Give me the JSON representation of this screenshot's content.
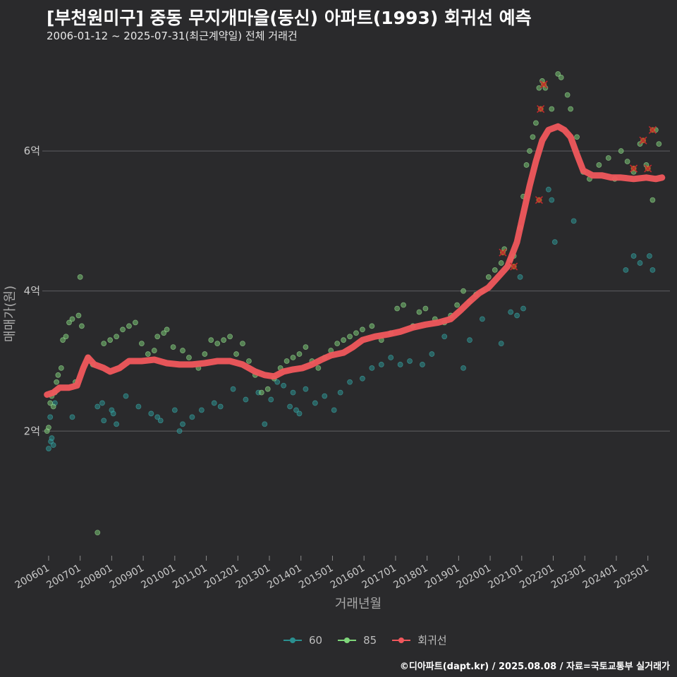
{
  "header": {
    "title": "[부천원미구] 중동 무지개마을(동신) 아파트(1993) 회귀선 예측",
    "subtitle": "2006-01-12 ~ 2025-07-31(최근계약일) 전체 거래건"
  },
  "caption": "©디아파트(dapt.kr) / 2025.08.08 / 자료=국토교통부 실거래가",
  "colors": {
    "background": "#2a2a2c",
    "grid": "#5e5e60",
    "s60": "#2a8f8f",
    "s85": "#7fd67a",
    "regression": "#f0575c"
  },
  "chart_data": {
    "type": "scatter",
    "title": "[부천원미구] 중동 무지개마을(동신) 아파트(1993) 회귀선 예측",
    "xlabel": "거래년월",
    "ylabel": "매매가(원)",
    "x_ticks": [
      "200601",
      "200701",
      "200801",
      "200901",
      "201001",
      "201101",
      "201201",
      "201301",
      "201401",
      "201501",
      "201601",
      "201701",
      "201801",
      "201901",
      "202001",
      "202101",
      "202201",
      "202301",
      "202401",
      "202501"
    ],
    "y_ticks": [
      {
        "value": 2,
        "label": "2억"
      },
      {
        "value": 4,
        "label": "4억"
      },
      {
        "value": 6,
        "label": "6억"
      }
    ],
    "xlim": [
      2005.85,
      2025.75
    ],
    "ylim": [
      0.2,
      7.3
    ],
    "y_unit": "억원",
    "legend": [
      {
        "name": "60",
        "color": "#2a8f8f"
      },
      {
        "name": "85",
        "color": "#7fd67a"
      },
      {
        "name": "회귀선",
        "color": "#f0575c"
      }
    ],
    "series": [
      {
        "name": "60",
        "points": [
          [
            2006.05,
            1.75
          ],
          [
            2006.12,
            1.85
          ],
          [
            2006.2,
            1.8
          ],
          [
            2006.15,
            1.9
          ],
          [
            2006.1,
            2.2
          ],
          [
            2006.25,
            2.4
          ],
          [
            2006.8,
            2.2
          ],
          [
            2007.6,
            2.35
          ],
          [
            2007.75,
            2.4
          ],
          [
            2007.8,
            2.15
          ],
          [
            2008.05,
            2.3
          ],
          [
            2008.1,
            2.25
          ],
          [
            2008.2,
            2.1
          ],
          [
            2008.5,
            2.5
          ],
          [
            2008.9,
            2.35
          ],
          [
            2009.3,
            2.25
          ],
          [
            2009.5,
            2.2
          ],
          [
            2009.6,
            2.15
          ],
          [
            2010.05,
            2.3
          ],
          [
            2010.2,
            2.0
          ],
          [
            2010.3,
            2.1
          ],
          [
            2010.6,
            2.2
          ],
          [
            2010.9,
            2.3
          ],
          [
            2011.3,
            2.4
          ],
          [
            2011.5,
            2.35
          ],
          [
            2011.9,
            2.6
          ],
          [
            2012.3,
            2.45
          ],
          [
            2012.7,
            2.55
          ],
          [
            2012.9,
            2.1
          ],
          [
            2013.1,
            2.45
          ],
          [
            2013.3,
            2.7
          ],
          [
            2013.5,
            2.65
          ],
          [
            2013.7,
            2.35
          ],
          [
            2013.8,
            2.55
          ],
          [
            2013.9,
            2.3
          ],
          [
            2014.0,
            2.25
          ],
          [
            2014.2,
            2.6
          ],
          [
            2014.5,
            2.4
          ],
          [
            2014.8,
            2.5
          ],
          [
            2015.1,
            2.3
          ],
          [
            2015.3,
            2.55
          ],
          [
            2015.6,
            2.7
          ],
          [
            2016.0,
            2.75
          ],
          [
            2016.3,
            2.9
          ],
          [
            2016.6,
            2.95
          ],
          [
            2016.9,
            3.05
          ],
          [
            2017.2,
            2.95
          ],
          [
            2017.5,
            3.0
          ],
          [
            2017.9,
            2.95
          ],
          [
            2018.2,
            3.1
          ],
          [
            2018.6,
            3.35
          ],
          [
            2019.2,
            2.9
          ],
          [
            2019.4,
            3.3
          ],
          [
            2019.8,
            3.6
          ],
          [
            2020.4,
            3.25
          ],
          [
            2020.7,
            3.7
          ],
          [
            2020.9,
            3.65
          ],
          [
            2021.0,
            4.2
          ],
          [
            2021.1,
            3.75
          ],
          [
            2021.9,
            5.45
          ],
          [
            2022.0,
            5.3
          ],
          [
            2022.1,
            4.7
          ],
          [
            2022.7,
            5.0
          ],
          [
            2024.35,
            4.3
          ],
          [
            2024.6,
            4.5
          ],
          [
            2024.8,
            4.4
          ],
          [
            2025.1,
            4.5
          ],
          [
            2025.2,
            4.3
          ]
        ]
      },
      {
        "name": "85",
        "points": [
          [
            2006.0,
            2.0
          ],
          [
            2006.05,
            2.05
          ],
          [
            2006.1,
            2.4
          ],
          [
            2006.15,
            2.5
          ],
          [
            2006.2,
            2.35
          ],
          [
            2006.25,
            2.55
          ],
          [
            2006.3,
            2.7
          ],
          [
            2006.35,
            2.8
          ],
          [
            2006.45,
            2.9
          ],
          [
            2006.5,
            3.3
          ],
          [
            2006.6,
            3.35
          ],
          [
            2006.7,
            3.55
          ],
          [
            2006.8,
            3.6
          ],
          [
            2006.9,
            2.7
          ],
          [
            2007.0,
            3.65
          ],
          [
            2007.05,
            4.2
          ],
          [
            2007.1,
            3.5
          ],
          [
            2007.3,
            3.05
          ],
          [
            2007.45,
            2.95
          ],
          [
            2007.6,
            0.55
          ],
          [
            2007.8,
            3.25
          ],
          [
            2008.0,
            3.3
          ],
          [
            2008.2,
            3.35
          ],
          [
            2008.4,
            3.45
          ],
          [
            2008.6,
            3.5
          ],
          [
            2008.8,
            3.55
          ],
          [
            2009.0,
            3.25
          ],
          [
            2009.2,
            3.1
          ],
          [
            2009.4,
            3.15
          ],
          [
            2009.5,
            3.35
          ],
          [
            2009.7,
            3.4
          ],
          [
            2009.8,
            3.45
          ],
          [
            2010.0,
            3.2
          ],
          [
            2010.3,
            3.15
          ],
          [
            2010.5,
            3.05
          ],
          [
            2010.8,
            2.9
          ],
          [
            2011.0,
            3.1
          ],
          [
            2011.2,
            3.3
          ],
          [
            2011.4,
            3.25
          ],
          [
            2011.6,
            3.3
          ],
          [
            2011.8,
            3.35
          ],
          [
            2012.0,
            3.1
          ],
          [
            2012.2,
            3.25
          ],
          [
            2012.4,
            3.0
          ],
          [
            2012.6,
            2.8
          ],
          [
            2012.8,
            2.55
          ],
          [
            2013.0,
            2.6
          ],
          [
            2013.2,
            2.75
          ],
          [
            2013.4,
            2.9
          ],
          [
            2013.6,
            3.0
          ],
          [
            2013.8,
            3.05
          ],
          [
            2014.0,
            3.1
          ],
          [
            2014.2,
            3.2
          ],
          [
            2014.4,
            3.0
          ],
          [
            2014.6,
            2.9
          ],
          [
            2014.8,
            3.05
          ],
          [
            2015.0,
            3.15
          ],
          [
            2015.2,
            3.25
          ],
          [
            2015.4,
            3.3
          ],
          [
            2015.6,
            3.35
          ],
          [
            2015.8,
            3.4
          ],
          [
            2016.0,
            3.45
          ],
          [
            2016.3,
            3.5
          ],
          [
            2016.6,
            3.3
          ],
          [
            2016.9,
            3.4
          ],
          [
            2017.1,
            3.75
          ],
          [
            2017.3,
            3.8
          ],
          [
            2017.6,
            3.5
          ],
          [
            2017.8,
            3.7
          ],
          [
            2018.0,
            3.75
          ],
          [
            2018.3,
            3.6
          ],
          [
            2018.6,
            3.55
          ],
          [
            2018.8,
            3.65
          ],
          [
            2019.0,
            3.8
          ],
          [
            2019.2,
            4.0
          ],
          [
            2019.4,
            3.85
          ],
          [
            2019.6,
            3.95
          ],
          [
            2019.8,
            4.0
          ],
          [
            2020.0,
            4.2
          ],
          [
            2020.2,
            4.3
          ],
          [
            2020.4,
            4.4
          ],
          [
            2020.5,
            4.6
          ],
          [
            2020.7,
            4.45
          ],
          [
            2020.8,
            4.5
          ],
          [
            2021.0,
            4.9
          ],
          [
            2021.1,
            5.35
          ],
          [
            2021.2,
            5.8
          ],
          [
            2021.3,
            6.0
          ],
          [
            2021.4,
            6.2
          ],
          [
            2021.5,
            6.4
          ],
          [
            2021.6,
            6.9
          ],
          [
            2021.7,
            7.0
          ],
          [
            2021.8,
            6.9
          ],
          [
            2022.0,
            6.6
          ],
          [
            2022.2,
            7.1
          ],
          [
            2022.3,
            7.05
          ],
          [
            2022.5,
            6.8
          ],
          [
            2022.6,
            6.6
          ],
          [
            2022.8,
            6.2
          ],
          [
            2023.0,
            5.7
          ],
          [
            2023.2,
            5.6
          ],
          [
            2023.5,
            5.8
          ],
          [
            2023.8,
            5.9
          ],
          [
            2024.0,
            5.6
          ],
          [
            2024.2,
            6.0
          ],
          [
            2024.4,
            5.85
          ],
          [
            2024.6,
            5.7
          ],
          [
            2024.8,
            6.1
          ],
          [
            2025.0,
            5.8
          ],
          [
            2025.2,
            5.3
          ],
          [
            2025.3,
            6.3
          ],
          [
            2025.4,
            6.1
          ]
        ]
      },
      {
        "name": "회귀선",
        "points": [
          [
            2006.0,
            2.52
          ],
          [
            2006.2,
            2.55
          ],
          [
            2006.4,
            2.62
          ],
          [
            2006.7,
            2.62
          ],
          [
            2006.95,
            2.65
          ],
          [
            2007.15,
            2.9
          ],
          [
            2007.3,
            3.05
          ],
          [
            2007.5,
            2.95
          ],
          [
            2007.8,
            2.9
          ],
          [
            2008.0,
            2.85
          ],
          [
            2008.3,
            2.9
          ],
          [
            2008.6,
            3.0
          ],
          [
            2009.0,
            3.0
          ],
          [
            2009.4,
            3.02
          ],
          [
            2009.8,
            2.97
          ],
          [
            2010.2,
            2.95
          ],
          [
            2010.6,
            2.95
          ],
          [
            2011.0,
            2.97
          ],
          [
            2011.4,
            3.0
          ],
          [
            2011.8,
            3.0
          ],
          [
            2012.2,
            2.95
          ],
          [
            2012.6,
            2.85
          ],
          [
            2012.9,
            2.8
          ],
          [
            2013.2,
            2.78
          ],
          [
            2013.5,
            2.85
          ],
          [
            2013.8,
            2.88
          ],
          [
            2014.1,
            2.9
          ],
          [
            2014.4,
            2.95
          ],
          [
            2014.7,
            3.02
          ],
          [
            2015.0,
            3.08
          ],
          [
            2015.4,
            3.12
          ],
          [
            2015.7,
            3.2
          ],
          [
            2016.0,
            3.3
          ],
          [
            2016.4,
            3.35
          ],
          [
            2016.8,
            3.38
          ],
          [
            2017.2,
            3.42
          ],
          [
            2017.6,
            3.48
          ],
          [
            2018.0,
            3.52
          ],
          [
            2018.4,
            3.55
          ],
          [
            2018.8,
            3.6
          ],
          [
            2019.1,
            3.72
          ],
          [
            2019.4,
            3.85
          ],
          [
            2019.7,
            3.97
          ],
          [
            2020.0,
            4.05
          ],
          [
            2020.3,
            4.2
          ],
          [
            2020.6,
            4.35
          ],
          [
            2020.9,
            4.7
          ],
          [
            2021.1,
            5.1
          ],
          [
            2021.3,
            5.5
          ],
          [
            2021.5,
            5.85
          ],
          [
            2021.7,
            6.15
          ],
          [
            2021.9,
            6.3
          ],
          [
            2022.2,
            6.35
          ],
          [
            2022.4,
            6.3
          ],
          [
            2022.6,
            6.2
          ],
          [
            2022.8,
            5.95
          ],
          [
            2023.0,
            5.72
          ],
          [
            2023.3,
            5.65
          ],
          [
            2023.6,
            5.65
          ],
          [
            2023.9,
            5.62
          ],
          [
            2024.2,
            5.62
          ],
          [
            2024.6,
            5.6
          ],
          [
            2025.0,
            5.62
          ],
          [
            2025.3,
            5.6
          ],
          [
            2025.5,
            5.62
          ]
        ]
      }
    ],
    "outliers_marked": [
      [
        2020.45,
        4.55
      ],
      [
        2020.8,
        4.35
      ],
      [
        2021.65,
        6.6
      ],
      [
        2021.75,
        6.95
      ],
      [
        2021.6,
        5.3
      ],
      [
        2024.6,
        5.75
      ],
      [
        2024.9,
        6.15
      ],
      [
        2025.05,
        5.75
      ],
      [
        2025.2,
        6.3
      ]
    ]
  }
}
